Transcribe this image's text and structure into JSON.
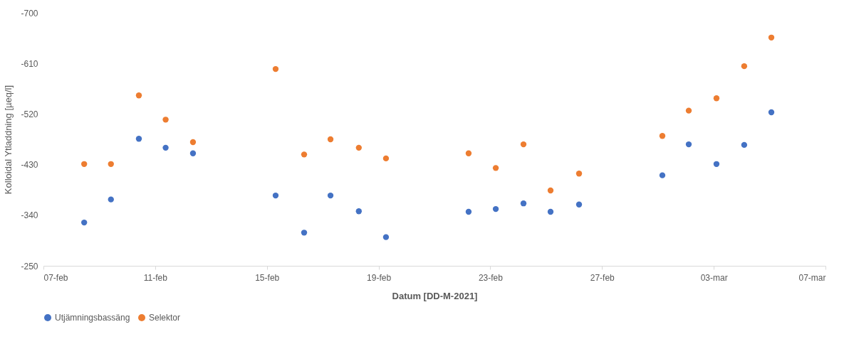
{
  "chart_data": {
    "type": "scatter",
    "xlabel": "Datum [DD-M-2021]",
    "ylabel": "Kolloidal Ytladdning [µeq/l]",
    "x": [
      "2021-02-08T11:00",
      "2021-02-09T10:00",
      "2021-02-10T10:00",
      "2021-02-11T09:00",
      "2021-02-12T08:30",
      "2021-02-15T07:30",
      "2021-02-16T08:00",
      "2021-02-17T06:40",
      "2021-02-18T07:00",
      "2021-02-19T06:20",
      "2021-02-22T05:20",
      "2021-02-23T04:40",
      "2021-02-24T04:30",
      "2021-02-25T03:45",
      "2021-02-26T04:15",
      "2021-03-01T03:50",
      "2021-03-02T02:30",
      "2021-03-03T02:20",
      "2021-03-04T02:10",
      "2021-03-05T01:30"
    ],
    "series": [
      {
        "name": "Utjämningsbassäng",
        "color": "#4472c4",
        "values": [
          -327,
          -368,
          -476,
          -460,
          -450,
          -375,
          -309,
          -375,
          -347,
          -301,
          -346,
          -351,
          -361,
          -346,
          -359,
          -411,
          -466,
          -431,
          -465,
          -523
        ]
      },
      {
        "name": "Selektor",
        "color": "#ed7d31",
        "values": [
          -431,
          -431,
          -553,
          -510,
          -470,
          -600,
          -448,
          -475,
          -460,
          -441,
          -450,
          -424,
          -466,
          -384,
          -414,
          -481,
          -526,
          -548,
          -605,
          -656
        ]
      }
    ],
    "xlim": [
      "2021-02-07",
      "2021-03-07"
    ],
    "xticks": [
      {
        "value": "2021-02-07",
        "label": "07-feb"
      },
      {
        "value": "2021-02-11",
        "label": "11-feb"
      },
      {
        "value": "2021-02-15",
        "label": "15-feb"
      },
      {
        "value": "2021-02-19",
        "label": "19-feb"
      },
      {
        "value": "2021-02-23",
        "label": "23-feb"
      },
      {
        "value": "2021-02-27",
        "label": "27-feb"
      },
      {
        "value": "2021-03-03",
        "label": "03-mar"
      },
      {
        "value": "2021-03-07",
        "label": "07-mar"
      }
    ],
    "ylim": [
      -250,
      -700
    ],
    "yticks": [
      -250,
      -340,
      -430,
      -520,
      -610,
      -700
    ],
    "marker": "circle",
    "legend": "bottom",
    "grid": false
  }
}
